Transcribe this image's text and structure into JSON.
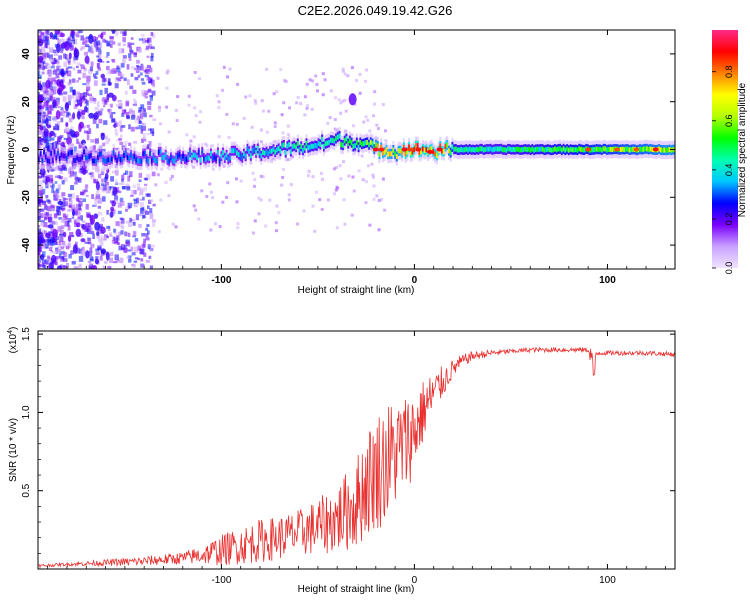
{
  "figure": {
    "title": "C2E2.2026.049.19.42.G26"
  },
  "chart_data": [
    {
      "type": "heatmap",
      "name": "spectrogram",
      "xlabel": "Height of straight line (km)",
      "ylabel": "Frequency (Hz)",
      "xlim": [
        -195,
        135
      ],
      "ylim": [
        -50,
        50
      ],
      "xticks": [
        -100,
        0,
        100
      ],
      "yticks": [
        -40,
        -20,
        0,
        20,
        40
      ],
      "colorbar": {
        "label": "Normalized spectral amplitude",
        "ticks": [
          0.0,
          0.2,
          0.4,
          0.6,
          0.8
        ],
        "range": [
          0.0,
          0.97
        ],
        "colormap": [
          "#f0e4ff",
          "#c9a0ff",
          "#7a00ff",
          "#0000ff",
          "#00c8ff",
          "#00ffb0",
          "#00ff00",
          "#b4ff00",
          "#ffff00",
          "#ff8000",
          "#ff0000",
          "#ff2a8a"
        ]
      },
      "ridge": {
        "description": "dominant frequency band vs height",
        "x": [
          -195,
          -180,
          -160,
          -140,
          -120,
          -100,
          -80,
          -60,
          -50,
          -40,
          -30,
          -25,
          -20,
          -15,
          -10,
          -5,
          0,
          5,
          10,
          15,
          20,
          40,
          60,
          80,
          100,
          120,
          135
        ],
        "center": [
          -3,
          -3,
          -3,
          -3,
          -3,
          -3,
          -1,
          1,
          2,
          4,
          3,
          2,
          0,
          0,
          -1,
          0,
          0,
          0,
          -1,
          0,
          0,
          0,
          0,
          0,
          0,
          0,
          0
        ],
        "amplitude": [
          0.3,
          0.3,
          0.32,
          0.35,
          0.38,
          0.4,
          0.45,
          0.5,
          0.5,
          0.52,
          0.55,
          0.6,
          0.75,
          0.8,
          0.7,
          0.9,
          0.95,
          0.9,
          0.85,
          0.9,
          0.55,
          0.5,
          0.55,
          0.6,
          0.65,
          0.7,
          0.75
        ]
      },
      "annotations": [
        {
          "x": -32,
          "y": 21,
          "text": "",
          "note": "isolated spectral blob near 20 Hz"
        }
      ]
    },
    {
      "type": "line",
      "name": "snr",
      "xlabel": "Height of straight line (km)",
      "ylabel": "SNR (10 * v/v)",
      "scale_label": "(x10",
      "scale_exp": "4",
      "scale_close": ")",
      "xlim": [
        -195,
        135
      ],
      "ylim": [
        0,
        1.52
      ],
      "xticks": [
        -100,
        0,
        100
      ],
      "yticks": [
        0.5,
        1.0,
        1.5
      ],
      "yticklabels": [
        "0.5",
        "1.0",
        "1.5"
      ],
      "series": [
        {
          "name": "SNR",
          "color": "#e8312f",
          "x": [
            -195,
            -180,
            -160,
            -140,
            -120,
            -110,
            -100,
            -90,
            -80,
            -70,
            -60,
            -50,
            -40,
            -30,
            -25,
            -20,
            -15,
            -10,
            -5,
            0,
            5,
            10,
            15,
            20,
            25,
            30,
            40,
            50,
            60,
            70,
            80,
            90,
            92,
            95,
            100,
            110,
            120,
            135
          ],
          "y": [
            0.02,
            0.03,
            0.04,
            0.05,
            0.07,
            0.09,
            0.12,
            0.15,
            0.18,
            0.2,
            0.23,
            0.27,
            0.32,
            0.42,
            0.55,
            0.62,
            0.68,
            0.74,
            0.8,
            0.88,
            1.02,
            1.12,
            1.2,
            1.28,
            1.33,
            1.36,
            1.38,
            1.39,
            1.4,
            1.4,
            1.4,
            1.4,
            1.35,
            1.38,
            1.38,
            1.38,
            1.38,
            1.37
          ],
          "noise": [
            0.01,
            0.01,
            0.02,
            0.03,
            0.04,
            0.06,
            0.1,
            0.12,
            0.14,
            0.14,
            0.15,
            0.18,
            0.22,
            0.3,
            0.35,
            0.38,
            0.4,
            0.35,
            0.32,
            0.28,
            0.2,
            0.15,
            0.1,
            0.06,
            0.04,
            0.03,
            0.02,
            0.015,
            0.015,
            0.015,
            0.015,
            0.015,
            0.08,
            0.015,
            0.015,
            0.015,
            0.015,
            0.015
          ]
        }
      ]
    }
  ]
}
